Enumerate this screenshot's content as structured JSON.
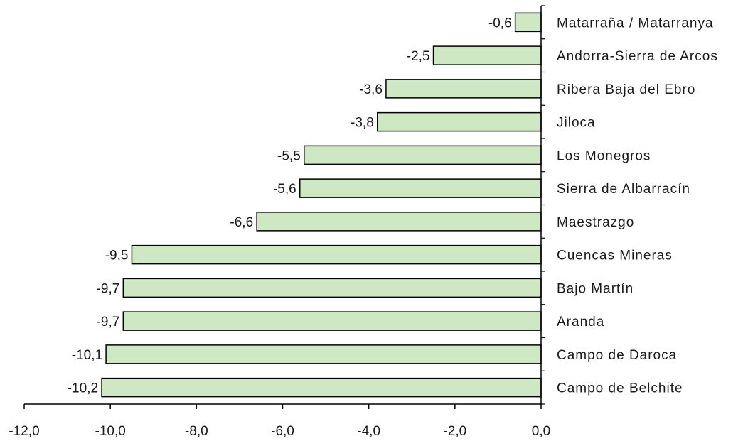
{
  "chart_data": {
    "type": "bar",
    "orientation": "horizontal",
    "categories": [
      "Matarraña / Matarranya",
      "Andorra-Sierra de Arcos",
      "Ribera Baja del Ebro",
      "Jiloca",
      "Los Monegros",
      "Sierra de Albarracín",
      "Maestrazgo",
      "Cuencas Mineras",
      "Bajo Martín",
      "Aranda",
      "Campo de Daroca",
      "Campo de Belchite"
    ],
    "values": [
      -0.6,
      -2.5,
      -3.6,
      -3.8,
      -5.5,
      -5.6,
      -6.6,
      -9.5,
      -9.7,
      -9.7,
      -10.1,
      -10.2
    ],
    "value_labels": [
      "-0,6",
      "-2,5",
      "-3,6",
      "-3,8",
      "-5,5",
      "-5,6",
      "-6,6",
      "-9,5",
      "-9,7",
      "-9,7",
      "-10,1",
      "-10,2"
    ],
    "xlim": [
      -12,
      0
    ],
    "xticks": [
      -12,
      -10,
      -8,
      -6,
      -4,
      -2,
      0
    ],
    "xtick_labels": [
      "-12,0",
      "-10,0",
      "-8,0",
      "-6,0",
      "-4,0",
      "-2,0",
      "0,0"
    ],
    "bar_color": "#cfe8c4",
    "bar_edge_color": "#000000",
    "grid": false,
    "legend": "none",
    "title": "",
    "xlabel": "",
    "ylabel": ""
  }
}
